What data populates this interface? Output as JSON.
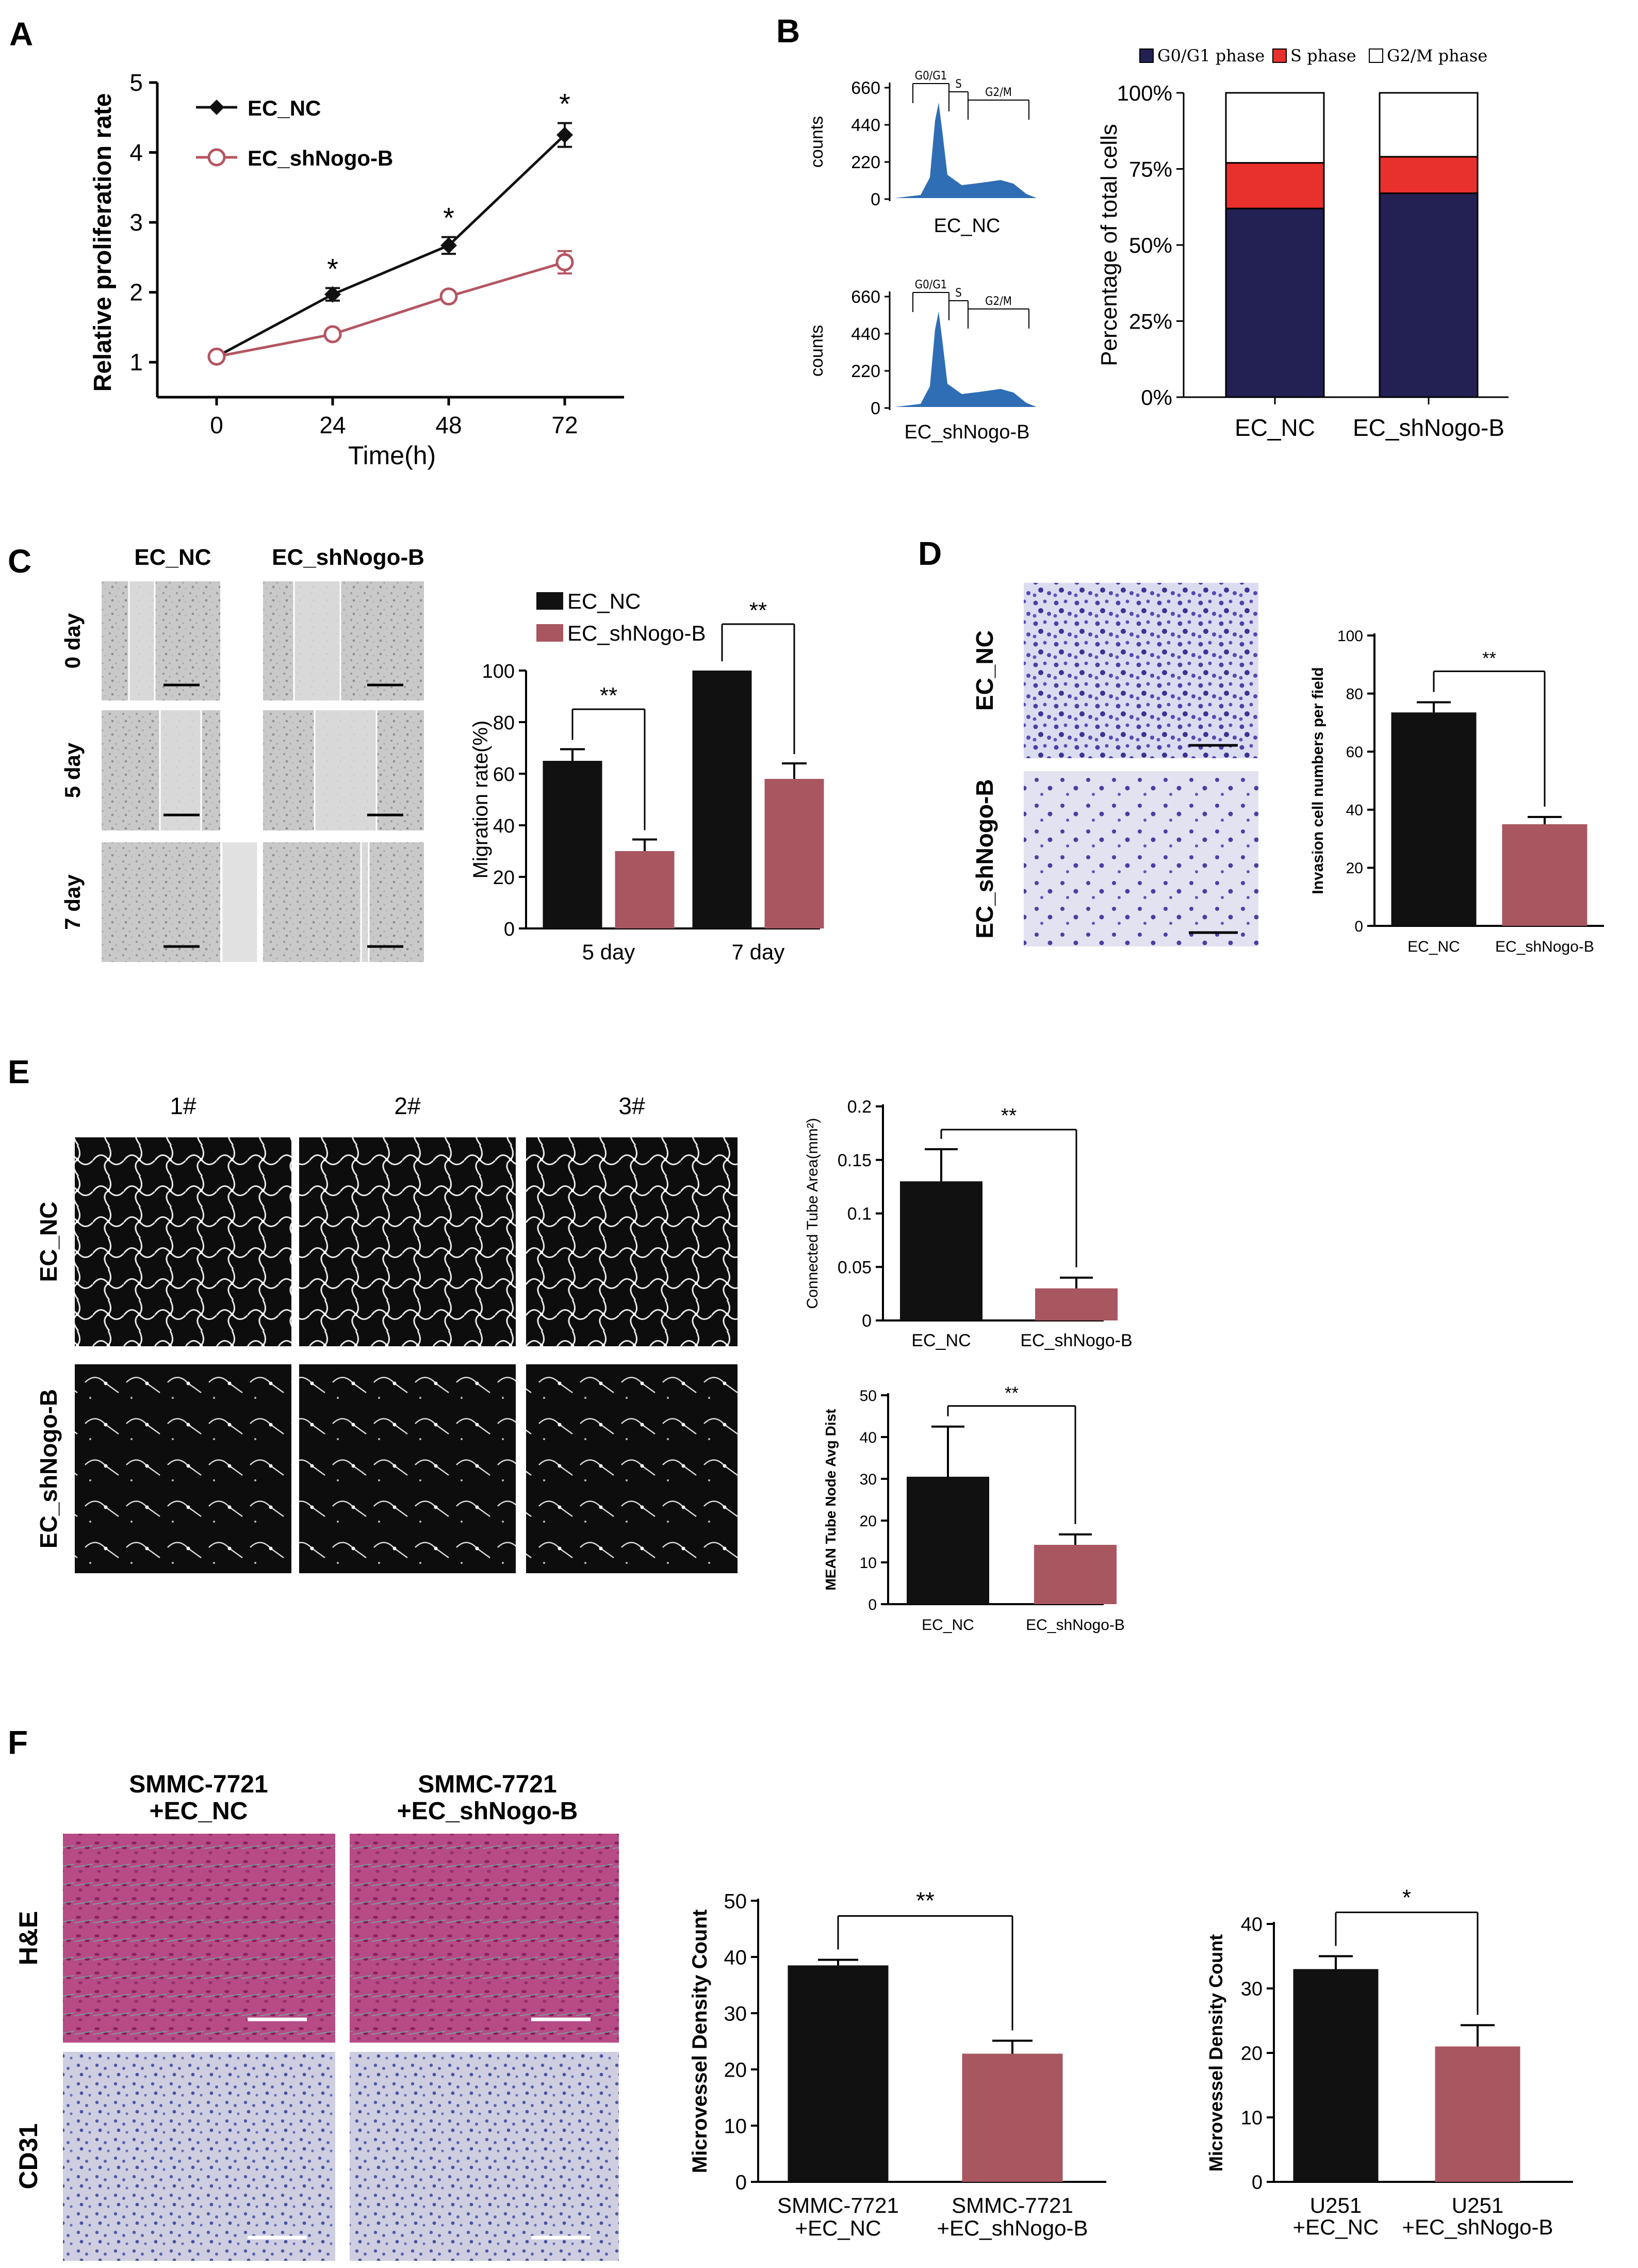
{
  "colors": {
    "black_bar": "#111111",
    "red_bar": "#a85660",
    "line_red": "#b45561",
    "g0": "#232054",
    "s": "#e8302c",
    "hist": "#2f6db5"
  },
  "panels": {
    "A": {
      "label": "A",
      "chart_data": {
        "type": "line",
        "x": [
          0,
          24,
          48,
          72
        ],
        "series": [
          {
            "name": "EC_NC",
            "values": [
              1.08,
              1.97,
              2.67,
              4.25
            ],
            "errors": [
              0.03,
              0.09,
              0.12,
              0.17
            ],
            "marker": "diamond"
          },
          {
            "name": "EC_shNogo-B",
            "values": [
              1.08,
              1.4,
              1.94,
              2.43
            ],
            "errors": [
              0.03,
              0.04,
              0.05,
              0.16
            ],
            "marker": "circle"
          }
        ],
        "ylim": [
          0.5,
          5
        ],
        "yticks": [
          "1",
          "2",
          "3",
          "4",
          "5"
        ],
        "xticks": [
          "0",
          "24",
          "48",
          "72"
        ],
        "xlabel": "Time(h)",
        "ylabel": "Relative proliferation rate",
        "annotations": [
          "*",
          "*",
          "*"
        ],
        "legend": "top-left"
      }
    },
    "B": {
      "label": "B",
      "histograms": [
        {
          "name": "EC_NC",
          "ylabel": "counts",
          "yticks": [
            "660",
            "440",
            "220",
            "0"
          ],
          "gates": [
            "G0/G1",
            "S",
            "G2/M"
          ]
        },
        {
          "name": "EC_shNogo-B",
          "ylabel": "counts",
          "yticks": [
            "660",
            "440",
            "220",
            "0"
          ],
          "gates": [
            "G0/G1",
            "S",
            "G2/M"
          ]
        }
      ],
      "chart_data": {
        "type": "bar",
        "stacked": true,
        "categories": [
          "EC_NC",
          "EC_shNogo-B"
        ],
        "series": [
          {
            "name": "G0/G1 phase",
            "values": [
              62,
              67
            ]
          },
          {
            "name": "S phase",
            "values": [
              15,
              12
            ]
          },
          {
            "name": "G2/M phase",
            "values": [
              23,
              21
            ]
          }
        ],
        "ylim": [
          0,
          100
        ],
        "yticks": [
          "0%",
          "25%",
          "50%",
          "75%",
          "100%"
        ],
        "ylabel": "Percentage of total cells",
        "legend": "top"
      }
    },
    "C": {
      "label": "C",
      "col_labels": [
        "EC_NC",
        "EC_shNogo-B"
      ],
      "row_labels": [
        "0 day",
        "5 day",
        "7 day"
      ],
      "chart_data": {
        "type": "bar",
        "categories": [
          "5 day",
          "7 day"
        ],
        "series": [
          {
            "name": "EC_NC",
            "values": [
              65,
              100
            ],
            "errors": [
              4.5,
              0
            ]
          },
          {
            "name": "EC_shNogo-B",
            "values": [
              30,
              58
            ],
            "errors": [
              4.5,
              6
            ]
          }
        ],
        "ylim": [
          0,
          100
        ],
        "yticks": [
          "0",
          "20",
          "40",
          "60",
          "80",
          "100"
        ],
        "ylabel": "Migration rate(%)",
        "annotations": [
          "**",
          "**"
        ],
        "legend": "top-left"
      }
    },
    "D": {
      "label": "D",
      "row_labels": [
        "EC_NC",
        "EC_shNogo-B"
      ],
      "chart_data": {
        "type": "bar",
        "categories": [
          "EC_NC",
          "EC_shNogo-B"
        ],
        "values": [
          73.5,
          35
        ],
        "errors": [
          3.5,
          2.5
        ],
        "ylim": [
          0,
          100
        ],
        "yticks": [
          "0",
          "20",
          "40",
          "60",
          "80",
          "100"
        ],
        "ylabel": "Invasion cell numbers per field",
        "annotations": [
          "**"
        ]
      }
    },
    "E": {
      "label": "E",
      "col_labels": [
        "1#",
        "2#",
        "3#"
      ],
      "row_labels": [
        "EC_NC",
        "EC_shNogo-B"
      ],
      "chart_data": [
        {
          "type": "bar",
          "categories": [
            "EC_NC",
            "EC_shNogo-B"
          ],
          "values": [
            0.13,
            0.03
          ],
          "errors": [
            0.03,
            0.01
          ],
          "ylim": [
            0,
            0.2
          ],
          "yticks": [
            "0",
            "0.05",
            "0.1",
            "0.15",
            "0.2"
          ],
          "ylabel": "Connected Tube Area(mm²)",
          "annotations": [
            "**"
          ]
        },
        {
          "type": "bar",
          "categories": [
            "EC_NC",
            "EC_shNogo-B"
          ],
          "values": [
            30.5,
            14.2
          ],
          "errors": [
            12,
            2.5
          ],
          "ylim": [
            0,
            50
          ],
          "yticks": [
            "0",
            "10",
            "20",
            "30",
            "40",
            "50"
          ],
          "ylabel": "MEAN Tube Node Avg Dist",
          "annotations": [
            "**"
          ]
        }
      ]
    },
    "F": {
      "label": "F",
      "col_labels": [
        [
          "SMMC-7721",
          "+EC_NC"
        ],
        [
          "SMMC-7721",
          "+EC_shNogo-B"
        ]
      ],
      "row_labels": [
        "H&E",
        "CD31"
      ],
      "chart_data": [
        {
          "type": "bar",
          "categories": [
            [
              "SMMC-7721",
              "+EC_NC"
            ],
            [
              "SMMC-7721",
              "+EC_shNogo-B"
            ]
          ],
          "values": [
            38.5,
            22.8
          ],
          "errors": [
            1.0,
            2.3
          ],
          "ylim": [
            0,
            50
          ],
          "yticks": [
            "0",
            "10",
            "20",
            "30",
            "40",
            "50"
          ],
          "ylabel": "Microvessel Density Count",
          "annotations": [
            "**"
          ]
        },
        {
          "type": "bar",
          "categories": [
            [
              "U251",
              "+EC_NC"
            ],
            [
              "U251",
              "+EC_shNogo-B"
            ]
          ],
          "values": [
            33,
            21
          ],
          "errors": [
            2,
            3.3
          ],
          "ylim": [
            0,
            40
          ],
          "yticks": [
            "0",
            "10",
            "20",
            "30",
            "40"
          ],
          "ylabel": "Microvessel Density Count",
          "annotations": [
            "*"
          ]
        }
      ]
    }
  }
}
